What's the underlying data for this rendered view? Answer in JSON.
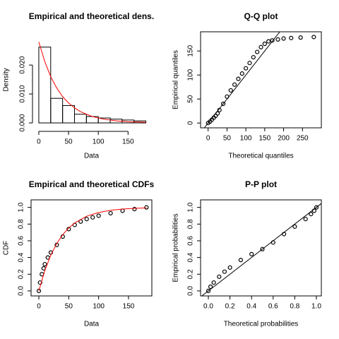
{
  "chart_data": [
    {
      "type": "histogram",
      "title": "Empirical and theoretical dens.",
      "xlabel": "Data",
      "ylabel": "Density",
      "bins": [
        0,
        20,
        40,
        60,
        80,
        100,
        120,
        140,
        160,
        180
      ],
      "values": [
        0.0262,
        0.0085,
        0.006,
        0.003,
        0.0022,
        0.0017,
        0.0013,
        0.001,
        0.0007
      ],
      "color": "#000000",
      "curve": {
        "color": "#ff0000",
        "x": [
          0,
          10,
          20,
          30,
          40,
          50,
          60,
          70,
          80,
          90,
          100,
          110,
          120,
          130,
          140,
          150,
          160,
          170,
          180
        ],
        "values": [
          0.028,
          0.0212,
          0.016,
          0.0121,
          0.0091,
          0.0069,
          0.0052,
          0.0039,
          0.003,
          0.0022,
          0.0017,
          0.0013,
          0.001,
          0.0007,
          0.0006,
          0.0004,
          0.0003,
          0.0003,
          0.0002
        ]
      },
      "xlim": [
        -13,
        190
      ],
      "ylim": [
        -0.0017,
        0.0315
      ],
      "xticks": [
        0,
        50,
        100,
        150
      ],
      "yticks": [
        {
          "value": 0,
          "label": "0.000"
        },
        {
          "value": 0.01,
          "label": "0.010"
        },
        {
          "value": 0.02,
          "label": "0.020"
        }
      ]
    },
    {
      "type": "scatter",
      "title": "Q-Q plot",
      "xlabel": "Theoretical quantiles",
      "ylabel": "Empirical quantiles",
      "diagonal": true,
      "color": "#000000",
      "x": [
        0,
        5,
        10,
        15,
        20,
        25,
        30,
        40,
        50,
        60,
        70,
        80,
        90,
        100,
        110,
        120,
        130,
        140,
        150,
        160,
        170,
        185,
        200,
        220,
        245,
        280
      ],
      "values": [
        0,
        3,
        7,
        11,
        15,
        20,
        27,
        40,
        55,
        68,
        80,
        92,
        103,
        114,
        125,
        137,
        148,
        158,
        165,
        170,
        172,
        174,
        176,
        177,
        178,
        179
      ],
      "xlim": [
        -20,
        300
      ],
      "ylim": [
        -10,
        190
      ],
      "xticks": [
        0,
        50,
        100,
        150,
        200,
        250
      ],
      "yticks": [
        0,
        50,
        100,
        150
      ]
    },
    {
      "type": "ecdf",
      "title": "Empirical and theoretical CDFs",
      "xlabel": "Data",
      "ylabel": "CDF",
      "series": [
        {
          "style": "points",
          "color": "#000000",
          "x": [
            0,
            2,
            5,
            8,
            10,
            15,
            20,
            30,
            40,
            50,
            60,
            70,
            80,
            90,
            100,
            120,
            140,
            160,
            180
          ],
          "values": [
            0,
            0.1,
            0.2,
            0.27,
            0.32,
            0.4,
            0.46,
            0.55,
            0.65,
            0.74,
            0.79,
            0.83,
            0.86,
            0.88,
            0.9,
            0.93,
            0.96,
            0.98,
            1.0
          ]
        },
        {
          "style": "line",
          "color": "#ff0000",
          "x": [
            0,
            10,
            20,
            30,
            40,
            50,
            60,
            80,
            100,
            120,
            140,
            160,
            180
          ],
          "values": [
            0,
            0.244,
            0.429,
            0.568,
            0.674,
            0.753,
            0.814,
            0.894,
            0.939,
            0.965,
            0.98,
            0.989,
            0.994
          ]
        }
      ],
      "xlim": [
        -13,
        189
      ],
      "ylim": [
        -0.06,
        1.09
      ],
      "xticks": [
        0,
        50,
        100,
        150
      ],
      "yticks": [
        {
          "value": 0,
          "label": "0.0"
        },
        0.2,
        0.4,
        0.6,
        0.8,
        {
          "value": 1,
          "label": "1.0"
        }
      ]
    },
    {
      "type": "scatter",
      "title": "P-P plot",
      "xlabel": "Theoretical probabilities",
      "ylabel": "Empirical probabilities",
      "diagonal": true,
      "color": "#000000",
      "x": [
        0,
        0.02,
        0.05,
        0.1,
        0.15,
        0.2,
        0.3,
        0.4,
        0.5,
        0.6,
        0.7,
        0.8,
        0.9,
        0.95,
        0.98,
        1.0
      ],
      "values": [
        0,
        0.05,
        0.1,
        0.17,
        0.23,
        0.28,
        0.37,
        0.44,
        0.5,
        0.58,
        0.68,
        0.77,
        0.86,
        0.92,
        0.96,
        1.0
      ],
      "xlim": [
        -0.072,
        1.046
      ],
      "ylim": [
        -0.06,
        1.09
      ],
      "xticks": [
        {
          "value": 0,
          "label": "0.0"
        },
        0.2,
        0.4,
        0.6,
        0.8,
        {
          "value": 1,
          "label": "1.0"
        }
      ],
      "yticks": [
        {
          "value": 0,
          "label": "0.0"
        },
        0.2,
        0.4,
        0.6,
        0.8,
        {
          "value": 1,
          "label": "1.0"
        }
      ]
    }
  ]
}
